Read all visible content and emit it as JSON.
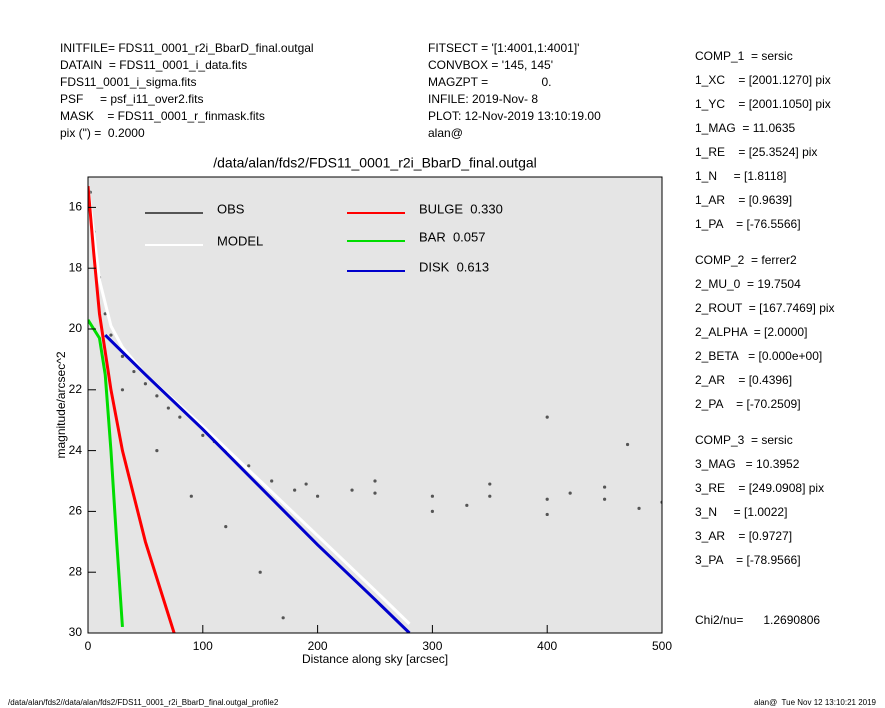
{
  "header": {
    "left": [
      "INITFILE= FDS11_0001_r2i_BbarD_final.outgal",
      "DATAIN  = FDS11_0001_i_data.fits",
      "FDS11_0001_i_sigma.fits",
      "PSF     = psf_i11_over2.fits",
      "MASK    = FDS11_0001_r_finmask.fits",
      "pix (\") =  0.2000"
    ],
    "middle": [
      "FITSECT = '[1:4001,1:4001]'",
      "CONVBOX = '145, 145'",
      "MAGZPT =                0.",
      "INFILE: 2019-Nov- 8",
      "PLOT: 12-Nov-2019 13:10:19.00",
      "alan@"
    ]
  },
  "params": [
    [
      "COMP_1  = sersic",
      "1_XC    = [2001.1270] pix",
      "1_YC    = [2001.1050] pix",
      "1_MAG  = 11.0635",
      "1_RE    = [25.3524] pix",
      "1_N     = [1.8118]",
      "1_AR    = [0.9639]",
      "1_PA    = [-76.5566]"
    ],
    [
      "COMP_2  = ferrer2",
      "2_MU_0  = 19.7504",
      "2_ROUT  = [167.7469] pix",
      "2_ALPHA  = [2.0000]",
      "2_BETA   = [0.000e+00]",
      "2_AR    = [0.4396]",
      "2_PA    = [-70.2509]"
    ],
    [
      "COMP_3  = sersic",
      "3_MAG   = 10.3952",
      "3_RE    = [249.0908] pix",
      "3_N     = [1.0022]",
      "3_AR    = [0.9727]",
      "3_PA    = [-78.9566]"
    ],
    [
      "Chi2/nu=      1.2690806"
    ]
  ],
  "footer": {
    "left": "/data/alan/fds2//data/alan/fds2/FDS11_0001_r2i_BbarD_final.outgal_profile2",
    "right": "alan@  Tue Nov 12 13:10:21 2019"
  },
  "chart_data": {
    "type": "scatter",
    "title": "/data/alan/fds2/FDS11_0001_r2i_BbarD_final.outgal",
    "x_label": "Distance along sky [arcsec]",
    "y_label": "magnitude/arcsec^2",
    "xlim": [
      0,
      500
    ],
    "xticks": [
      0,
      100,
      200,
      300,
      400,
      500
    ],
    "ylim": [
      15,
      30
    ],
    "yticks": [
      16,
      18,
      20,
      22,
      24,
      26,
      28,
      30
    ],
    "y_inverted": true,
    "background": "#e5e5e5",
    "series": [
      {
        "name": "OBS",
        "color": "#555555",
        "mode": "points",
        "x": [
          2,
          5,
          10,
          15,
          20,
          30,
          40,
          50,
          60,
          80,
          100,
          120,
          140,
          160,
          180,
          200,
          250,
          300,
          350,
          400,
          450,
          500,
          250,
          350,
          450,
          300,
          400,
          30,
          60,
          90,
          120,
          150,
          170,
          400,
          470,
          70,
          110,
          190,
          230,
          330,
          420,
          480
        ],
        "values": [
          15.5,
          16.8,
          18.3,
          19.5,
          20.2,
          20.9,
          21.4,
          21.8,
          22.2,
          22.9,
          23.5,
          24.0,
          24.5,
          25.0,
          25.3,
          25.5,
          25.4,
          25.5,
          25.5,
          25.6,
          25.6,
          25.7,
          25.0,
          25.1,
          25.2,
          26.0,
          26.1,
          22.0,
          24.0,
          25.5,
          26.5,
          28.0,
          29.5,
          22.9,
          23.8,
          22.6,
          23.7,
          25.1,
          25.3,
          25.8,
          25.4,
          25.9
        ]
      },
      {
        "name": "MODEL",
        "color": "#ffffff",
        "mode": "line",
        "x": [
          0,
          10,
          20,
          30,
          50,
          100,
          150,
          200,
          250,
          280
        ],
        "values": [
          15.3,
          18.4,
          19.9,
          20.6,
          21.5,
          23.2,
          25.0,
          26.8,
          28.6,
          29.7
        ]
      },
      {
        "name": "BULGE  0.330",
        "color": "#ff0000",
        "mode": "line",
        "x": [
          0,
          5,
          10,
          20,
          30,
          50,
          75
        ],
        "values": [
          15.3,
          17.5,
          19.5,
          22.0,
          24.0,
          27.0,
          30.0
        ]
      },
      {
        "name": "BAR  0.057",
        "color": "#00dd00",
        "mode": "line",
        "x": [
          0,
          10,
          15,
          20,
          25,
          30
        ],
        "values": [
          19.7,
          20.3,
          21.5,
          24.0,
          27.0,
          29.8
        ]
      },
      {
        "name": "DISK  0.613",
        "color": "#0000cc",
        "mode": "line",
        "x": [
          15,
          50,
          100,
          150,
          200,
          250,
          280
        ],
        "values": [
          20.2,
          21.5,
          23.3,
          25.2,
          27.1,
          28.9,
          30.0
        ]
      }
    ]
  }
}
